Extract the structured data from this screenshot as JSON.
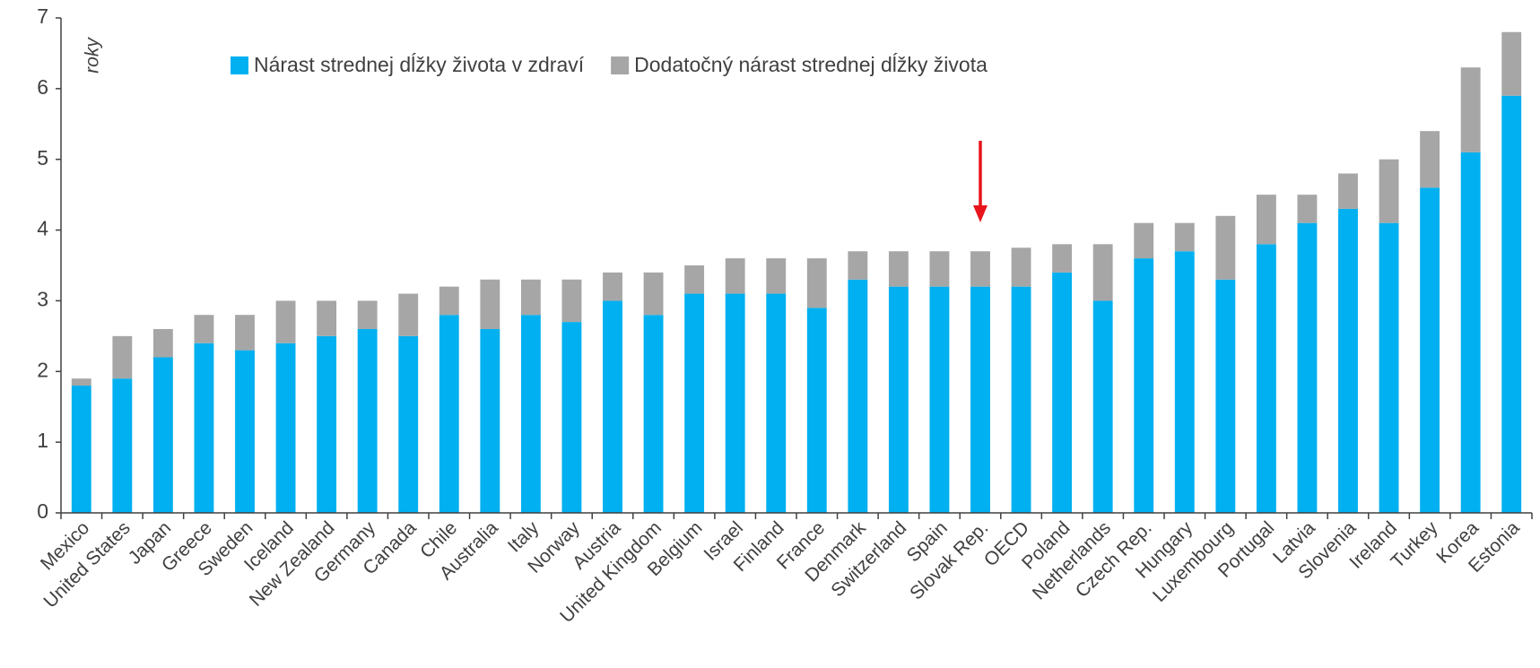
{
  "chart_data": {
    "type": "stacked_bar",
    "y_label": "roky",
    "categories": [
      "Mexico",
      "United States",
      "Japan",
      "Greece",
      "Sweden",
      "Iceland",
      "New Zealand",
      "Germany",
      "Canada",
      "Chile",
      "Australia",
      "Italy",
      "Norway",
      "Austria",
      "United Kingdom",
      "Belgium",
      "Israel",
      "Finland",
      "France",
      "Denmark",
      "Switzerland",
      "Spain",
      "Slovak Rep.",
      "OECD",
      "Poland",
      "Netherlands",
      "Czech Rep.",
      "Hungary",
      "Luxembourg",
      "Portugal",
      "Latvia",
      "Slovenia",
      "Ireland",
      "Turkey",
      "Korea",
      "Estonia"
    ],
    "series": [
      {
        "name": "Nárast strednej dĺžky života v zdraví",
        "color": "#00b0f0",
        "values": [
          1.8,
          1.9,
          2.2,
          2.4,
          2.3,
          2.4,
          2.5,
          2.6,
          2.5,
          2.8,
          2.6,
          2.8,
          2.7,
          3.0,
          2.8,
          3.1,
          3.1,
          3.1,
          2.9,
          3.3,
          3.2,
          3.2,
          3.2,
          3.2,
          3.4,
          3.0,
          3.6,
          3.7,
          3.3,
          3.8,
          4.1,
          4.3,
          4.1,
          4.6,
          5.1,
          5.9
        ]
      },
      {
        "name": "Dodatočný nárast strednej dĺžky života",
        "color": "#a6a6a6",
        "values": [
          0.1,
          0.6,
          0.4,
          0.4,
          0.5,
          0.6,
          0.5,
          0.4,
          0.6,
          0.4,
          0.7,
          0.5,
          0.6,
          0.4,
          0.6,
          0.4,
          0.5,
          0.5,
          0.7,
          0.4,
          0.5,
          0.5,
          0.5,
          0.55,
          0.4,
          0.8,
          0.5,
          0.4,
          0.9,
          0.7,
          0.4,
          0.5,
          0.9,
          0.8,
          1.2,
          0.9
        ]
      }
    ],
    "ylim": [
      0,
      7
    ],
    "yticks": [
      0,
      1,
      2,
      3,
      4,
      5,
      6,
      7
    ],
    "grid": false,
    "legend": "top"
  }
}
